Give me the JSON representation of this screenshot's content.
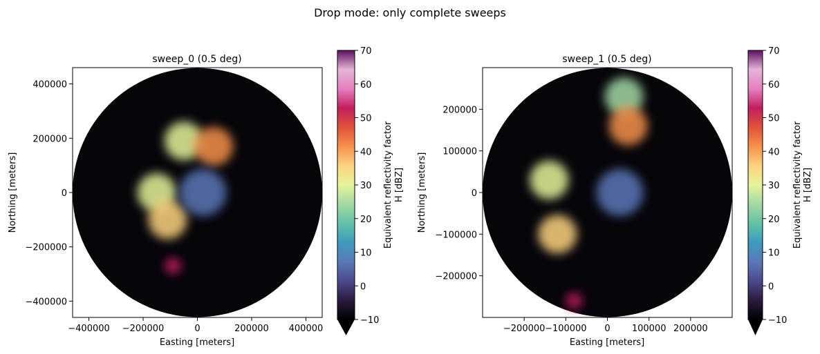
{
  "suptitle": "Drop mode: only complete sweeps",
  "colors": {
    "background_disc": "#06050a",
    "colormap": [
      "#000000",
      "#2a1b3d",
      "#4b4a8c",
      "#5a77b8",
      "#3c9cbd",
      "#62c2a5",
      "#a3d9a4",
      "#e6f49a",
      "#fdd37f",
      "#f6914c",
      "#e0533a",
      "#c21e5e",
      "#e57fc0",
      "#e3b5d6",
      "#5d0f5f"
    ]
  },
  "colorbar": {
    "label_line1": "Equivalent reflectivity factor",
    "label_line2": "H [dBZ]",
    "range": [
      -10,
      70
    ],
    "ticks": [
      "70",
      "60",
      "50",
      "40",
      "30",
      "20",
      "10",
      "0",
      "−10"
    ],
    "extend": "min"
  },
  "chart_data": [
    {
      "type": "heatmap",
      "title": "sweep_0 (0.5 deg)",
      "xlabel": "Easting [meters]",
      "ylabel": "Northing [meters]",
      "xlim": [
        -460000,
        460000
      ],
      "ylim": [
        -460000,
        460000
      ],
      "xticks": [
        "−400000",
        "−200000",
        "0",
        "200000",
        "400000"
      ],
      "yticks": [
        "400000",
        "200000",
        "0",
        "−200000",
        "−400000"
      ],
      "max_range": 460000,
      "echoes": [
        {
          "x": -150000,
          "y": 0,
          "dbz": 30
        },
        {
          "x": -110000,
          "y": -100000,
          "dbz": 34
        },
        {
          "x": -90000,
          "y": -270000,
          "dbz": 55
        },
        {
          "x": -50000,
          "y": 190000,
          "dbz": 28
        },
        {
          "x": 60000,
          "y": 170000,
          "dbz": 40
        },
        {
          "x": 20000,
          "y": 0,
          "dbz": 8
        }
      ]
    },
    {
      "type": "heatmap",
      "title": "sweep_1 (0.5 deg)",
      "xlabel": "Easting [meters]",
      "ylabel": "Northing [meters]",
      "xlim": [
        -300000,
        300000
      ],
      "ylim": [
        -300000,
        300000
      ],
      "xticks": [
        "−200000",
        "−100000",
        "0",
        "100000",
        "200000"
      ],
      "yticks": [
        "200000",
        "100000",
        "0",
        "−100000",
        "−200000"
      ],
      "max_range": 300000,
      "echoes": [
        {
          "x": -140000,
          "y": 30000,
          "dbz": 30
        },
        {
          "x": -120000,
          "y": -100000,
          "dbz": 36
        },
        {
          "x": -80000,
          "y": -260000,
          "dbz": 55
        },
        {
          "x": 40000,
          "y": 230000,
          "dbz": 26
        },
        {
          "x": 50000,
          "y": 160000,
          "dbz": 40
        },
        {
          "x": 30000,
          "y": 0,
          "dbz": 8
        }
      ]
    }
  ]
}
